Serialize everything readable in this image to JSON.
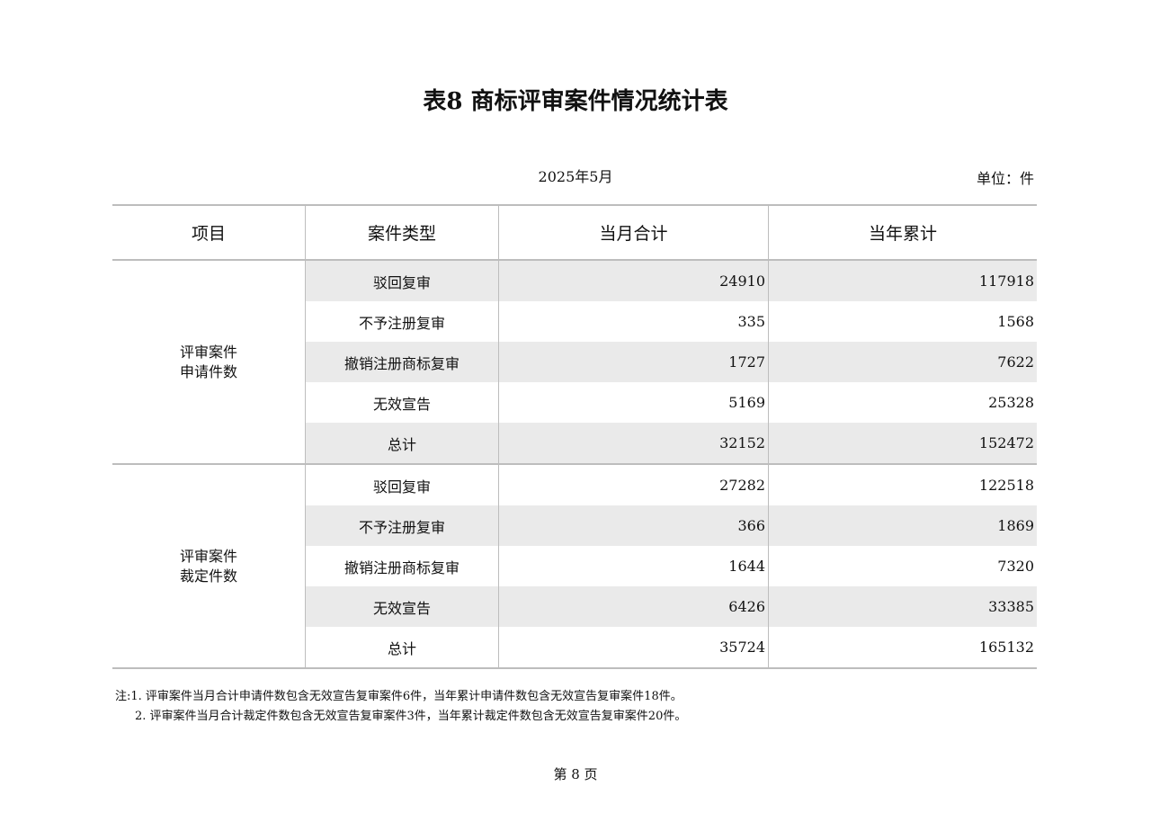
{
  "title": "表8 商标评审案件情况统计表",
  "date": "2025年5月",
  "unit": "单位：件",
  "columns": [
    "项目",
    "案件类型",
    "当月合计",
    "当年累计"
  ],
  "groups": [
    {
      "label_line1": "评审案件",
      "label_line2": "申请件数",
      "rows": [
        {
          "type": "驳回复审",
          "month": "24910",
          "year": "117918"
        },
        {
          "type": "不予注册复审",
          "month": "335",
          "year": "1568"
        },
        {
          "type": "撤销注册商标复审",
          "month": "1727",
          "year": "7622"
        },
        {
          "type": "无效宣告",
          "month": "5169",
          "year": "25328"
        },
        {
          "type": "总计",
          "month": "32152",
          "year": "152472"
        }
      ]
    },
    {
      "label_line1": "评审案件",
      "label_line2": "裁定件数",
      "rows": [
        {
          "type": "驳回复审",
          "month": "27282",
          "year": "122518"
        },
        {
          "type": "不予注册复审",
          "month": "366",
          "year": "1869"
        },
        {
          "type": "撤销注册商标复审",
          "month": "1644",
          "year": "7320"
        },
        {
          "type": "无效宣告",
          "month": "6426",
          "year": "33385"
        },
        {
          "type": "总计",
          "month": "35724",
          "year": "165132"
        }
      ]
    }
  ],
  "notes": [
    "注:1. 评审案件当月合计申请件数包含无效宣告复审案件6件，当年累计申请件数包含无效宣告复审案件18件。",
    "2. 评审案件当月合计裁定件数包含无效宣告复审案件3件，当年累计裁定件数包含无效宣告复审案件20件。"
  ],
  "page_label": "第 8 页",
  "colors": {
    "shade": "#eaeaea",
    "border": "#bdbdbd"
  }
}
